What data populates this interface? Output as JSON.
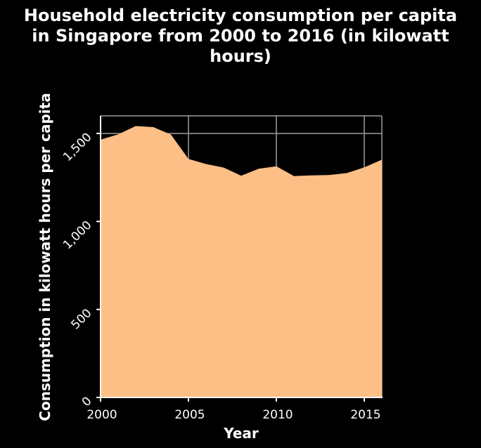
{
  "chart_data": {
    "type": "area",
    "title_lines": [
      "Household electricity consumption per capita",
      "in Singapore from 2000 to 2016 (in kilowatt",
      "hours)"
    ],
    "xlabel": "Year",
    "ylabel": "Consumption in kilowatt hours per capita",
    "x": [
      2000,
      2001,
      2002,
      2003,
      2004,
      2005,
      2006,
      2007,
      2008,
      2009,
      2010,
      2011,
      2012,
      2013,
      2014,
      2015,
      2016
    ],
    "series": [
      {
        "values": [
          1465,
          1495,
          1542,
          1536,
          1494,
          1355,
          1326,
          1306,
          1260,
          1300,
          1313,
          1258,
          1262,
          1264,
          1275,
          1307,
          1351
        ],
        "color": "#fdbf86"
      }
    ],
    "xlim": [
      2000,
      2016
    ],
    "ylim": [
      0,
      1600
    ],
    "xticks": [
      2000,
      2005,
      2010,
      2015
    ],
    "xtick_labels": [
      "2000",
      "2005",
      "2010",
      "2015"
    ],
    "yticks": [
      0,
      500,
      1000,
      1500
    ],
    "ytick_labels": [
      "0",
      "500",
      "1,000",
      "1,500"
    ],
    "grid": true,
    "colors": {
      "background": "#000000",
      "grid": "#9e9e9e",
      "axis": "#ffffff",
      "text": "#ffffff"
    }
  }
}
